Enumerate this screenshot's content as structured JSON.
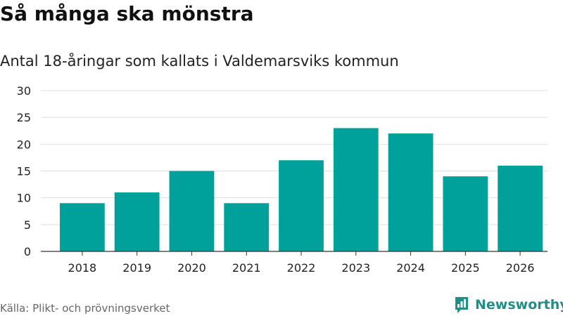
{
  "header": {
    "title": "Så många ska mönstra",
    "subtitle": "Antal 18-åringar som kallats i Valdemarsviks kommun"
  },
  "footer": {
    "source": "Källa: Plikt- och prövningsverket",
    "brand_name": "Newsworthy"
  },
  "colors": {
    "bar": "#00a19b",
    "grid": "#dddddd",
    "axis": "#333333",
    "brand": "#1f8f87"
  },
  "chart_data": {
    "type": "bar",
    "title": "Så många ska mönstra",
    "subtitle": "Antal 18-åringar som kallats i Valdemarsviks kommun",
    "categories": [
      "2018",
      "2019",
      "2020",
      "2021",
      "2022",
      "2023",
      "2024",
      "2025",
      "2026"
    ],
    "values": [
      9,
      11,
      15,
      9,
      17,
      23,
      22,
      14,
      16
    ],
    "ylim": [
      0,
      30
    ],
    "yticks": [
      0,
      5,
      10,
      15,
      20,
      25,
      30
    ],
    "grid": true,
    "legend": "none"
  }
}
